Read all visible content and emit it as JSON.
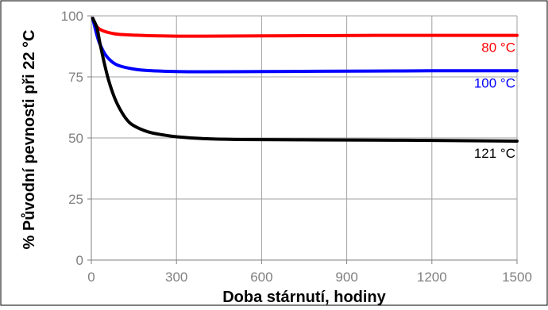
{
  "chart_data": {
    "type": "line",
    "title": "",
    "xlabel": "Doba stárnutí, hodiny",
    "ylabel": "% Původní pevnosti při 22 °C",
    "xlim": [
      0,
      1500
    ],
    "ylim": [
      0,
      100
    ],
    "x_ticks": [
      0,
      300,
      600,
      900,
      1200,
      1500
    ],
    "y_ticks": [
      0,
      25,
      50,
      75,
      100
    ],
    "grid": true,
    "series": [
      {
        "name": "80 °C",
        "color": "#ff0000",
        "x": [
          5,
          10,
          20,
          30,
          50,
          75,
          100,
          150,
          200,
          300,
          400,
          600,
          800,
          1000,
          1200,
          1500
        ],
        "y": [
          99,
          97.5,
          95.5,
          94.5,
          93.5,
          92.8,
          92.4,
          92.1,
          91.9,
          91.7,
          91.7,
          91.8,
          91.9,
          92.0,
          92.0,
          92.0
        ]
      },
      {
        "name": "100 °C",
        "color": "#0000ff",
        "x": [
          5,
          10,
          20,
          30,
          50,
          75,
          100,
          150,
          200,
          300,
          400,
          600,
          800,
          1000,
          1200,
          1500
        ],
        "y": [
          99,
          96.5,
          92,
          88.5,
          84,
          81,
          79.5,
          78.2,
          77.6,
          77.2,
          77.1,
          77.2,
          77.3,
          77.4,
          77.5,
          77.5
        ]
      },
      {
        "name": "121 °C",
        "color": "#000000",
        "x": [
          5,
          20,
          30,
          45,
          60,
          80,
          100,
          125,
          150,
          200,
          250,
          300,
          400,
          500,
          600,
          800,
          1000,
          1200,
          1500
        ],
        "y": [
          99,
          95,
          89,
          81,
          74,
          67,
          62,
          57.5,
          55,
          52.5,
          51.3,
          50.5,
          49.7,
          49.4,
          49.3,
          49.2,
          49.1,
          49.0,
          48.7
        ]
      }
    ]
  }
}
